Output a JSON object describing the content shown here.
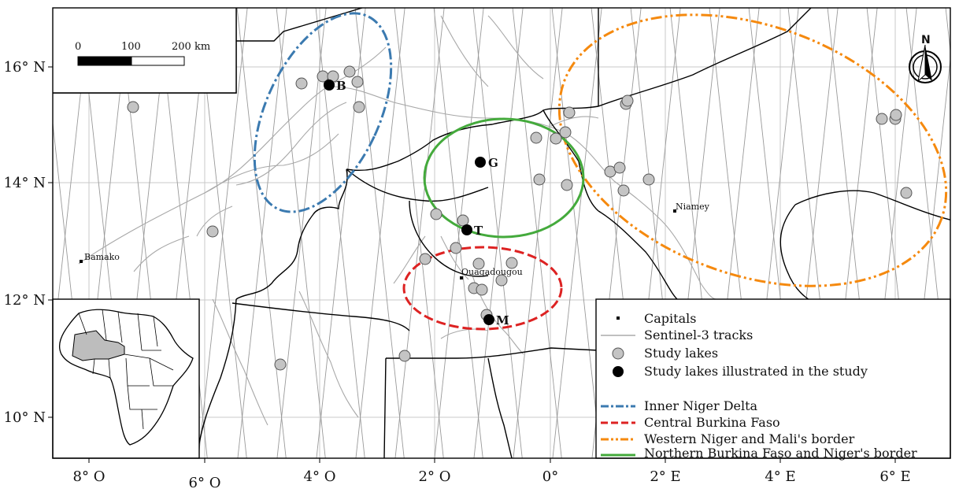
{
  "axes": {
    "x_ticks": [
      "8° O",
      "6° O",
      "4° O",
      "2° O",
      "0°",
      "2° E",
      "4° E",
      "6° E"
    ],
    "y_ticks": [
      "16° N",
      "14° N",
      "12° N",
      "10° N"
    ]
  },
  "capitals": [
    {
      "name": "Bamako"
    },
    {
      "name": "Ouagadougou"
    },
    {
      "name": "Niamey"
    }
  ],
  "illustrated_lakes": [
    {
      "label": "B"
    },
    {
      "label": "G"
    },
    {
      "label": "T"
    },
    {
      "label": "M"
    }
  ],
  "scale_bar": {
    "labels": [
      "0",
      "100",
      "200 km"
    ]
  },
  "north_arrow": {
    "label": "N",
    "icon": "north-arrow-icon"
  },
  "legend": {
    "items": [
      {
        "label": "Capitals"
      },
      {
        "label": "Sentinel-3 tracks"
      },
      {
        "label": "Study lakes"
      },
      {
        "label": "Study lakes illustrated in the study"
      }
    ],
    "regions": [
      {
        "label": "Inner Niger Delta",
        "color": "#3b7ab0"
      },
      {
        "label": "Central Burkina Faso",
        "color": "#dd2222"
      },
      {
        "label": "Western Niger and Mali's border",
        "color": "#f5890e"
      },
      {
        "label": "Northern Burkina Faso and Niger's border",
        "color": "#44aa3c"
      }
    ]
  },
  "colors": {
    "track": "#9a9a9a",
    "grid": "#c8c8c8",
    "river": "#a8a8a8",
    "lake_fill": "#c4c4c4",
    "illustrated_fill": "#000000",
    "inset_highlight": "#bdbdbd"
  }
}
